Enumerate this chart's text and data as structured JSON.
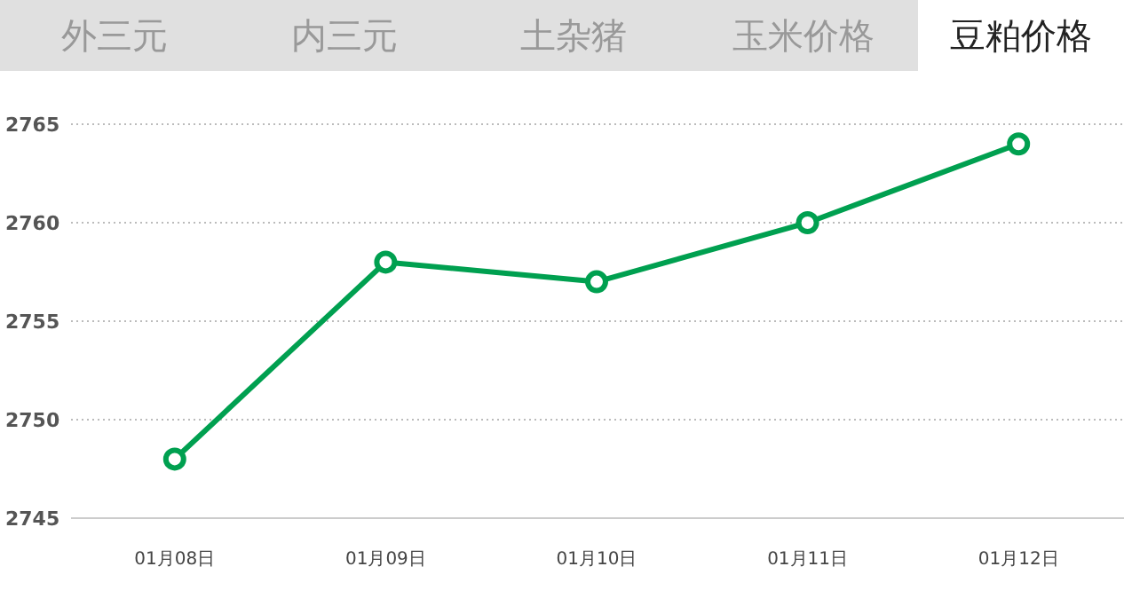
{
  "chart_data": {
    "type": "line",
    "title": "豆粕价格",
    "annotations": [
      "外三元",
      "内三元",
      "土杂猪",
      "玉米价格"
    ],
    "categories": [
      "01月08日",
      "01月09日",
      "01月10日",
      "01月11日",
      "01月12日"
    ],
    "series": [
      {
        "color": "#00a050",
        "values": [
          2748,
          2758,
          2757,
          2760,
          2764
        ]
      }
    ],
    "ylim": [
      2745,
      2765
    ],
    "yticks": [
      2745,
      2750,
      2755,
      2760,
      2765
    ],
    "grid": "y",
    "marker": "circle",
    "line_style": "solid"
  }
}
